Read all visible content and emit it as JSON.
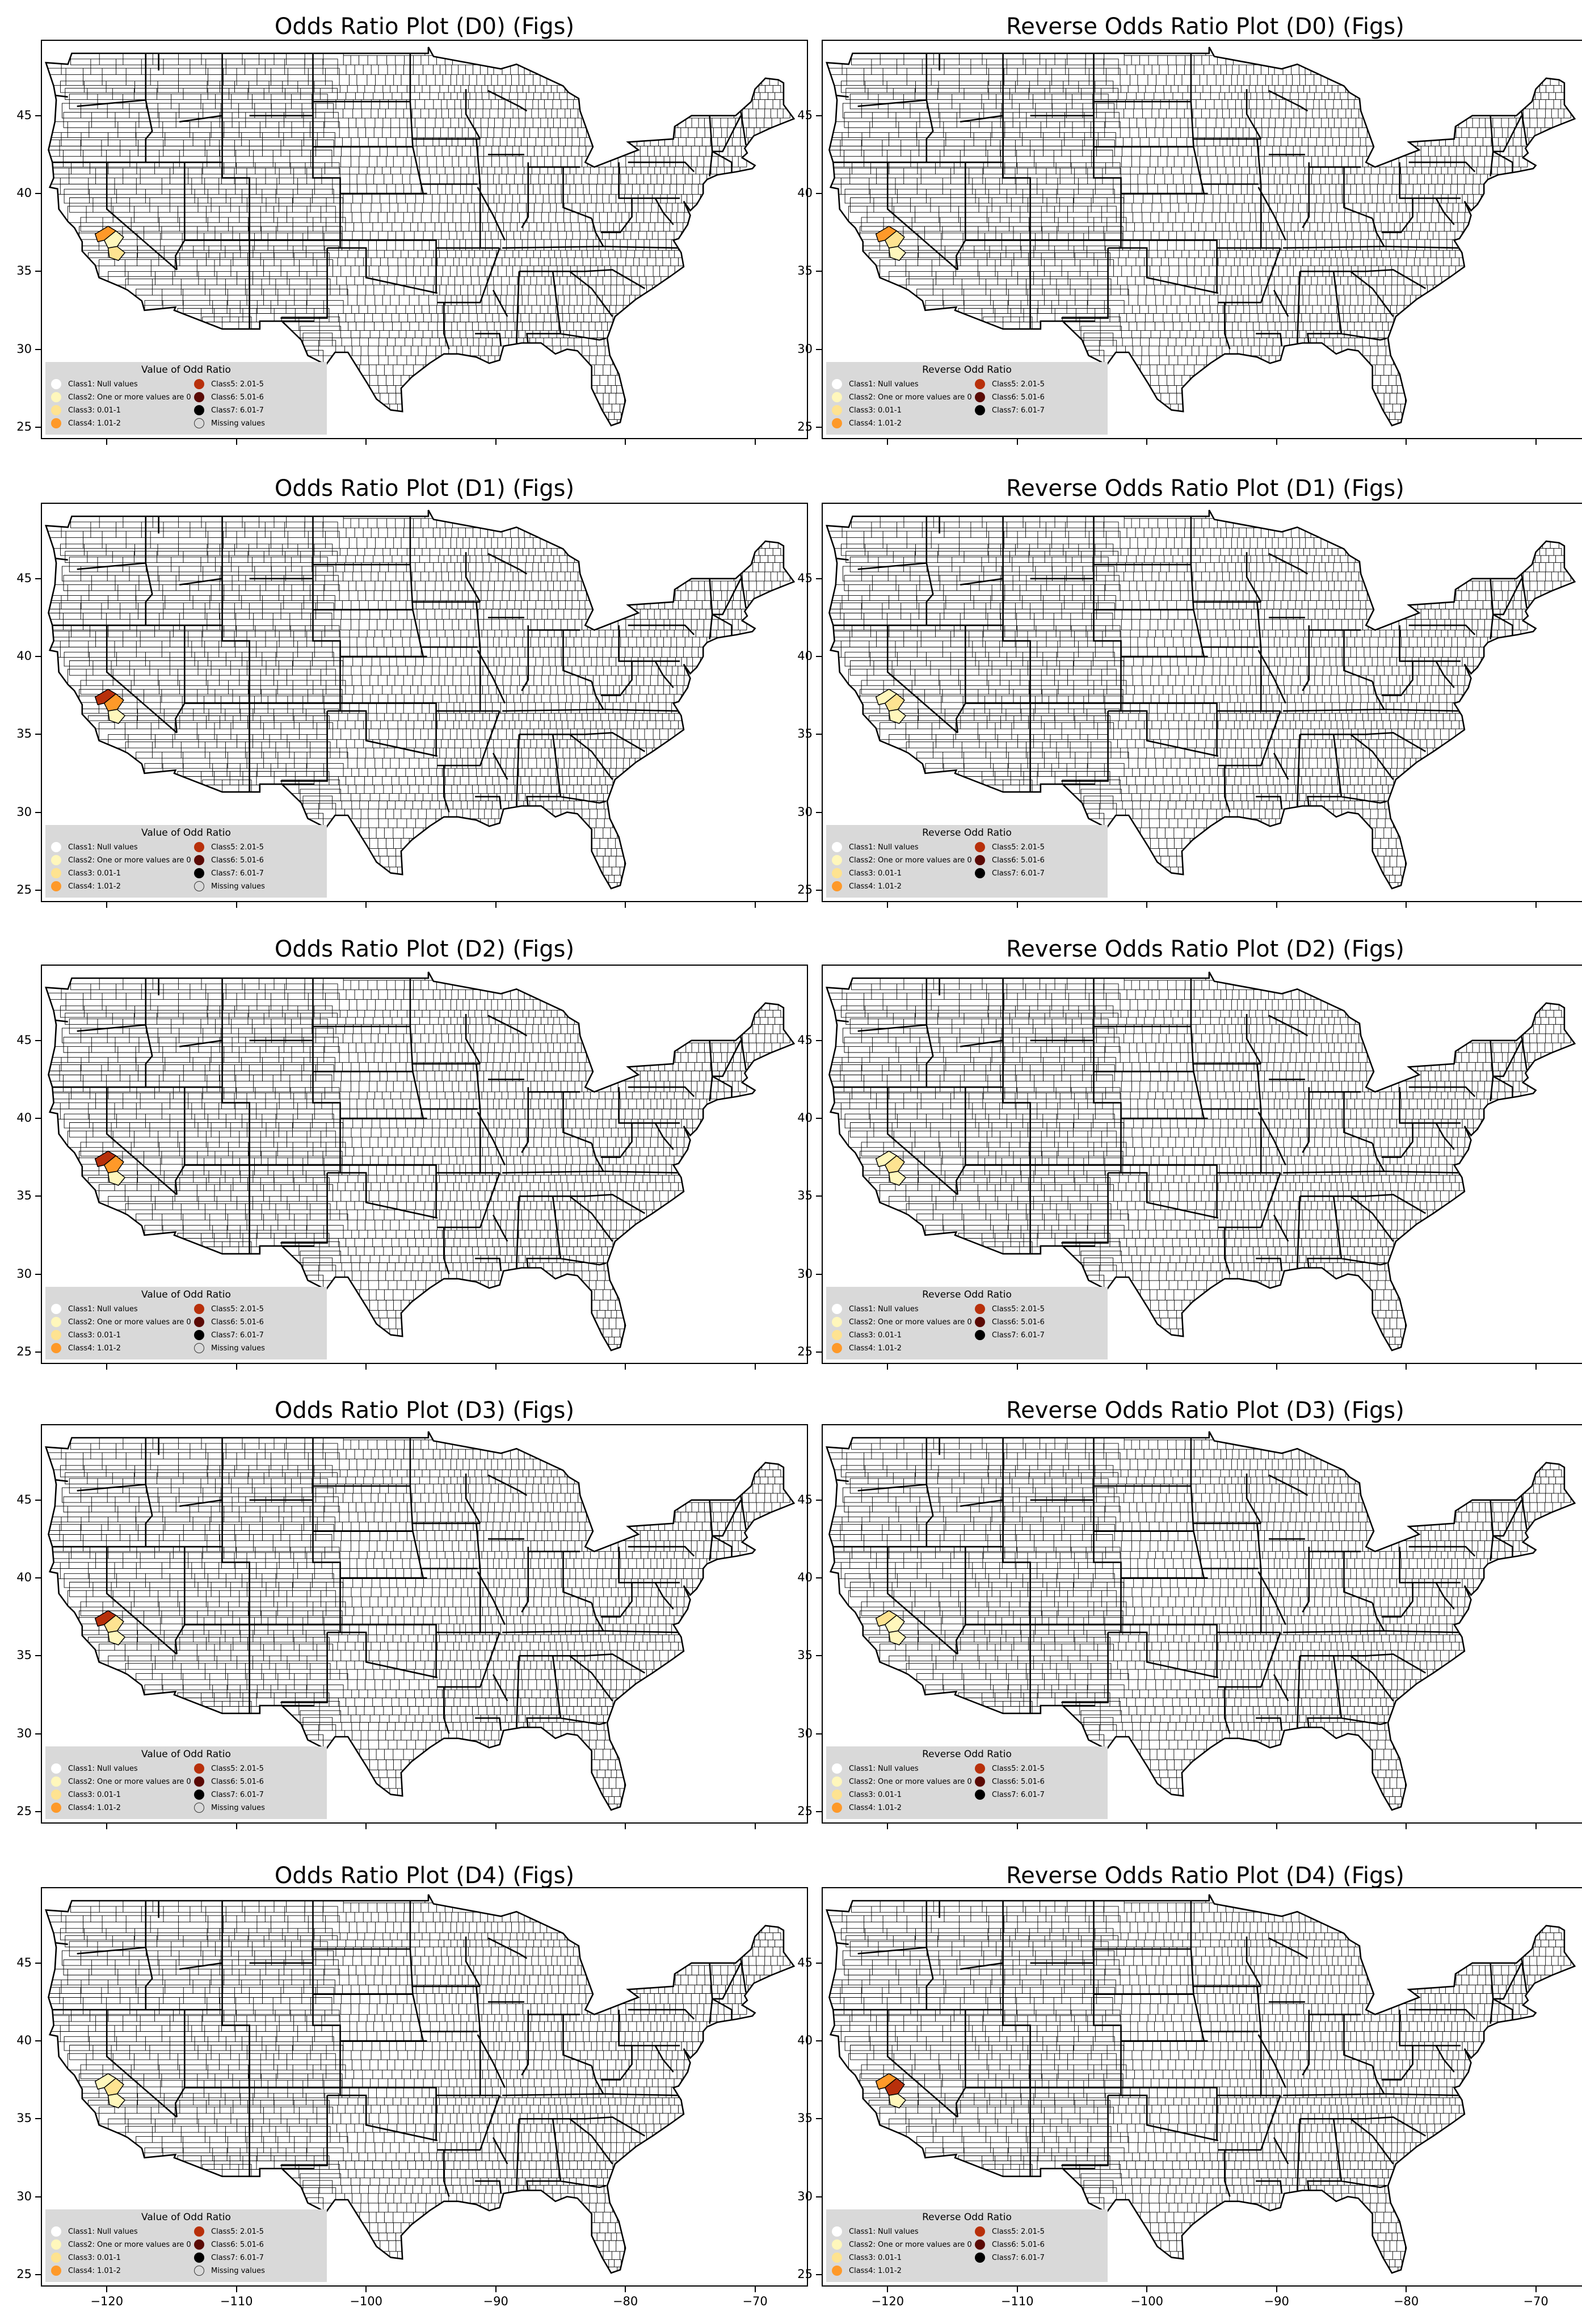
{
  "panels": [
    {
      "title": "Odds Ratio Plot (D0) (Figs)",
      "legend_title": "Value of Odd Ratio",
      "show_missing": true
    },
    {
      "title": "Reverse Odds Ratio Plot (D0) (Figs)",
      "legend_title": "Reverse Odd Ratio",
      "show_missing": false
    },
    {
      "title": "Odds Ratio Plot (D1) (Figs)",
      "legend_title": "Value of Odd Ratio",
      "show_missing": true
    },
    {
      "title": "Reverse Odds Ratio Plot (D1) (Figs)",
      "legend_title": "Reverse Odd Ratio",
      "show_missing": false
    },
    {
      "title": "Odds Ratio Plot (D2) (Figs)",
      "legend_title": "Value of Odd Ratio",
      "show_missing": true
    },
    {
      "title": "Reverse Odds Ratio Plot (D2) (Figs)",
      "legend_title": "Reverse Odd Ratio",
      "show_missing": false
    },
    {
      "title": "Odds Ratio Plot (D3) (Figs)",
      "legend_title": "Value of Odd Ratio",
      "show_missing": true
    },
    {
      "title": "Reverse Odds Ratio Plot (D3) (Figs)",
      "legend_title": "Reverse Odd Ratio",
      "show_missing": false
    },
    {
      "title": "Odds Ratio Plot (D4) (Figs)",
      "legend_title": "Value of Odd Ratio",
      "show_missing": true
    },
    {
      "title": "Reverse Odds Ratio Plot (D4) (Figs)",
      "legend_title": "Reverse Odd Ratio",
      "show_missing": false
    }
  ],
  "legend_classes": [
    {
      "label": "Class1: Null values",
      "color": "#ffffff"
    },
    {
      "label": "Class2: One or more values are 0",
      "color": "#fff7bc"
    },
    {
      "label": "Class3: 0.01-1",
      "color": "#fee391"
    },
    {
      "label": "Class4: 1.01-2",
      "color": "#fe9929"
    },
    {
      "label": "Class5: 2.01-5",
      "color": "#b8300b"
    },
    {
      "label": "Class6: 5.01-6",
      "color": "#5a0a05"
    },
    {
      "label": "Class7: 6.01-7",
      "color": "#000000"
    },
    {
      "label": "Missing values",
      "color": "#d9d9d9"
    }
  ],
  "axes": {
    "x_ticks": [
      "−120",
      "−110",
      "−100",
      "−90",
      "−80",
      "−70"
    ],
    "y_ticks": [
      "45",
      "40",
      "35",
      "30",
      "25"
    ],
    "x_range": [
      -125,
      -66
    ],
    "y_range": [
      24.3,
      49.8
    ]
  },
  "map_colors": {
    "county_fill": "#ffffff",
    "county_stroke": "#000000",
    "highlight_light": "#fff7bc",
    "highlight_mid": "#fee391",
    "highlight_orange": "#fe9929",
    "highlight_red": "#b8300b"
  }
}
